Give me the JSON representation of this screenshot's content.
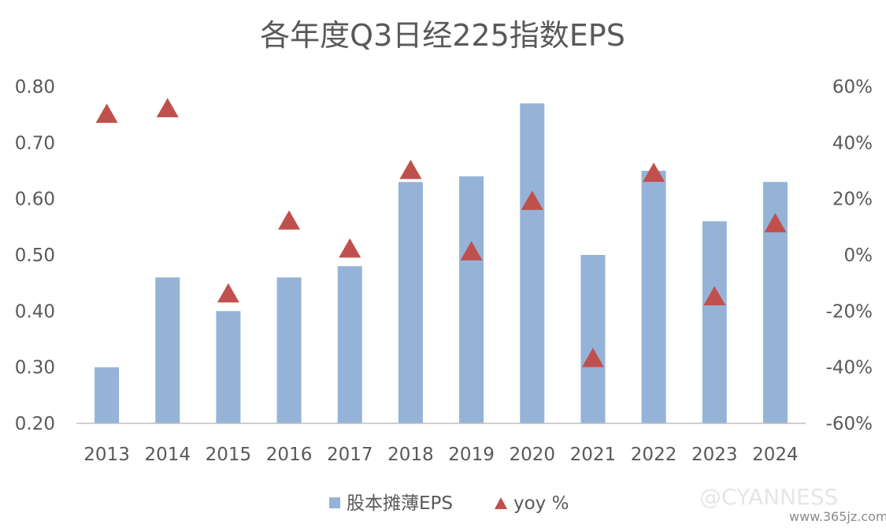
{
  "chart_data": {
    "type": "bar",
    "title": "各年度Q3日经225指数EPS",
    "categories": [
      "2013",
      "2014",
      "2015",
      "2016",
      "2017",
      "2018",
      "2019",
      "2020",
      "2021",
      "2022",
      "2023",
      "2024"
    ],
    "series": [
      {
        "name": "股本摊薄EPS",
        "type": "bar",
        "axis": "left",
        "color": "#95b3d7",
        "values": [
          0.3,
          0.46,
          0.4,
          0.46,
          0.48,
          0.63,
          0.64,
          0.77,
          0.5,
          0.65,
          0.56,
          0.63
        ]
      },
      {
        "name": "yoy %",
        "type": "scatter",
        "marker": "triangle",
        "axis": "right",
        "color": "#c0504d",
        "values": [
          50,
          52,
          -14,
          12,
          2,
          30,
          1,
          19,
          -37,
          29,
          -15,
          11
        ]
      }
    ],
    "y_left": {
      "ylim": [
        0.2,
        0.8
      ],
      "ticks": [
        "0.20",
        "0.30",
        "0.40",
        "0.50",
        "0.60",
        "0.70",
        "0.80"
      ]
    },
    "y_right": {
      "ylim": [
        -60,
        60
      ],
      "ticks": [
        "-60%",
        "-40%",
        "-20%",
        "0%",
        "20%",
        "40%",
        "60%"
      ]
    },
    "legend": "bottom",
    "grid": false
  },
  "watermark": {
    "handle": "@CYANNESS",
    "site": "www.365jz.com"
  }
}
